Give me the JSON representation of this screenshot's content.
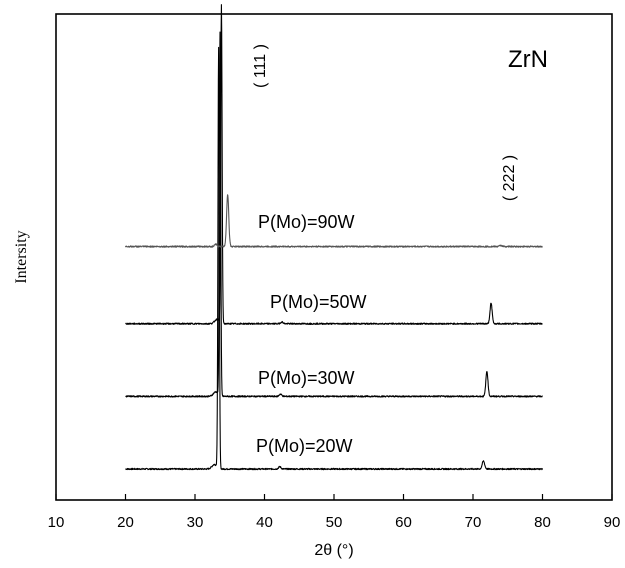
{
  "chart_data": {
    "type": "line",
    "title": "ZrN",
    "xlabel": "2θ  (°)",
    "ylabel": "Intersity",
    "xlim": [
      10,
      90
    ],
    "x_ticks": [
      10,
      20,
      30,
      40,
      50,
      60,
      70,
      80,
      90
    ],
    "x_tick_labels": [
      "10",
      "20",
      "30",
      "40",
      "50",
      "60",
      "70",
      "80",
      "90"
    ],
    "y_ticks_shown": false,
    "legend": "none",
    "x_range_measured": [
      20,
      80
    ],
    "annotations": [
      {
        "text": "( 111 )",
        "x": 38
      },
      {
        "text": "( 222 )",
        "x": 74
      }
    ],
    "series": [
      {
        "name": "P(Mo)=20W",
        "color": "#000000",
        "baseline": 0.0,
        "peaks": [
          {
            "x": 33.4,
            "height": 1.85
          },
          {
            "x": 42.2,
            "height": 0.01
          },
          {
            "x": 71.5,
            "height": 0.035
          }
        ]
      },
      {
        "name": "P(Mo)=30W",
        "color": "#000000",
        "baseline": 0.32,
        "peaks": [
          {
            "x": 33.6,
            "height": 1.6
          },
          {
            "x": 42.3,
            "height": 0.01
          },
          {
            "x": 72.0,
            "height": 0.11
          }
        ]
      },
      {
        "name": "P(Mo)=50W",
        "color": "#000000",
        "baseline": 0.64,
        "peaks": [
          {
            "x": 33.8,
            "height": 1.4
          },
          {
            "x": 42.5,
            "height": 0.008
          },
          {
            "x": 72.6,
            "height": 0.09
          }
        ]
      },
      {
        "name": "P(Mo)=90W",
        "color": "#555555",
        "baseline": 0.98,
        "peaks": [
          {
            "x": 33.0,
            "height": 0.01
          },
          {
            "x": 34.7,
            "height": 0.23
          },
          {
            "x": 74.0,
            "height": 0.005
          }
        ]
      }
    ]
  }
}
